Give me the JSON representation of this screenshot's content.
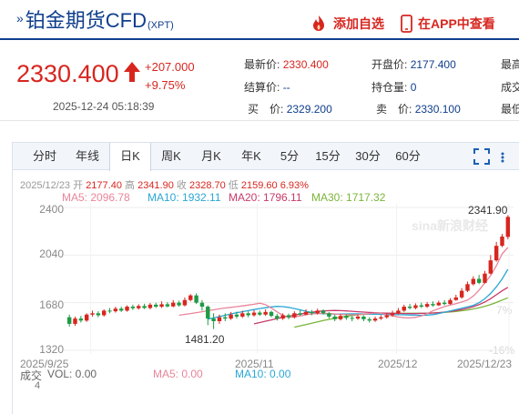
{
  "header": {
    "title": "铂金期货CFD",
    "code": "(XPT)",
    "add_watchlist": "添加自选",
    "open_app": "在APP中查看",
    "accent": "#0f3e8c",
    "alert": "#d7261f"
  },
  "quote": {
    "price": "2330.400",
    "change": "+207.000",
    "change_pct": "+9.75%",
    "time": "2025-12-24 05:18:39",
    "fields": [
      {
        "label": "最新价:",
        "value": "2330.400"
      },
      {
        "label": "开盘价:",
        "value": "2177.400"
      },
      {
        "label": "最高"
      },
      {
        "label": "结算价:",
        "value": "--"
      },
      {
        "label": "持仓量:",
        "value": "0"
      },
      {
        "label": "成交"
      },
      {
        "label": "买　价:",
        "value": "2329.200"
      },
      {
        "label": "卖　价:",
        "value": "2330.100"
      },
      {
        "label": "最低"
      }
    ]
  },
  "tabs": [
    "分时",
    "年线",
    "日K",
    "周K",
    "月K",
    "年K",
    "5分",
    "15分",
    "30分",
    "60分"
  ],
  "active_tab": "日K",
  "chart_info": {
    "date": "2025/12/23",
    "open_label": "开",
    "open": "2177.40",
    "high_label": "高",
    "high": "2341.90",
    "close_label": "收",
    "close": "2328.70",
    "low_label": "低",
    "low": "2159.60",
    "change_pct": "6.93%"
  },
  "ma_legend": [
    {
      "text": "MA5: 2096.78",
      "color": "#e8859a"
    },
    {
      "text": "MA10: 1932.11",
      "color": "#2aa7d4"
    },
    {
      "text": "MA20: 1796.11",
      "color": "#c93a6a"
    },
    {
      "text": "MA30: 1717.32",
      "color": "#7bb43a"
    }
  ],
  "y_labels": [
    "2400",
    "2040",
    "1680",
    "1320"
  ],
  "pct_labels": [
    "7%",
    "-16%"
  ],
  "x_labels": [
    "2025/9/25",
    "2025/11",
    "2025/12",
    "2025/12/23"
  ],
  "annotations": {
    "high": "2341.90",
    "low": "1481.20"
  },
  "watermark": "sina新浪财经",
  "volume": {
    "label": "成交",
    "unit": "4",
    "vol": "VOL: 0.00",
    "ma5": "MA5: 0.00",
    "ma10": "MA10: 0.00"
  },
  "chart_data": {
    "type": "candlestick",
    "x_range": [
      "2025/9/17",
      "2025/12/23"
    ],
    "ylim": [
      1320,
      2400
    ],
    "up_color": "#d7261f",
    "down_color": "#1e9b44",
    "candles": [
      [
        1570,
        1520,
        1590,
        1500
      ],
      [
        1520,
        1560,
        1575,
        1505
      ],
      [
        1560,
        1545,
        1580,
        1530
      ],
      [
        1545,
        1590,
        1600,
        1535
      ],
      [
        1590,
        1600,
        1620,
        1575
      ],
      [
        1600,
        1585,
        1615,
        1570
      ],
      [
        1585,
        1620,
        1630,
        1575
      ],
      [
        1620,
        1615,
        1640,
        1600
      ],
      [
        1615,
        1635,
        1650,
        1605
      ],
      [
        1635,
        1620,
        1650,
        1610
      ],
      [
        1620,
        1650,
        1660,
        1612
      ],
      [
        1650,
        1638,
        1665,
        1625
      ],
      [
        1638,
        1655,
        1668,
        1628
      ],
      [
        1655,
        1640,
        1672,
        1632
      ],
      [
        1640,
        1665,
        1678,
        1630
      ],
      [
        1665,
        1650,
        1680,
        1640
      ],
      [
        1650,
        1668,
        1690,
        1640
      ],
      [
        1668,
        1652,
        1684,
        1645
      ],
      [
        1652,
        1680,
        1700,
        1645
      ],
      [
        1680,
        1660,
        1695,
        1650
      ],
      [
        1660,
        1700,
        1720,
        1652
      ],
      [
        1700,
        1735,
        1745,
        1690
      ],
      [
        1735,
        1680,
        1750,
        1670
      ],
      [
        1680,
        1650,
        1700,
        1620
      ],
      [
        1650,
        1560,
        1660,
        1510
      ],
      [
        1560,
        1540,
        1600,
        1481
      ],
      [
        1540,
        1570,
        1590,
        1520
      ],
      [
        1570,
        1560,
        1600,
        1540
      ],
      [
        1560,
        1590,
        1610,
        1550
      ],
      [
        1590,
        1575,
        1612,
        1560
      ],
      [
        1575,
        1600,
        1620,
        1565
      ],
      [
        1600,
        1585,
        1615,
        1570
      ],
      [
        1585,
        1605,
        1625,
        1575
      ],
      [
        1605,
        1590,
        1620,
        1580
      ],
      [
        1590,
        1610,
        1630,
        1580
      ],
      [
        1610,
        1580,
        1620,
        1570
      ],
      [
        1580,
        1560,
        1595,
        1545
      ],
      [
        1560,
        1585,
        1600,
        1550
      ],
      [
        1585,
        1570,
        1598,
        1555
      ],
      [
        1570,
        1600,
        1615,
        1560
      ],
      [
        1600,
        1590,
        1625,
        1580
      ],
      [
        1590,
        1610,
        1630,
        1585
      ],
      [
        1610,
        1600,
        1625,
        1585
      ],
      [
        1600,
        1620,
        1635,
        1590
      ],
      [
        1620,
        1600,
        1630,
        1590
      ],
      [
        1600,
        1575,
        1610,
        1560
      ],
      [
        1575,
        1555,
        1590,
        1540
      ],
      [
        1555,
        1580,
        1595,
        1545
      ],
      [
        1580,
        1565,
        1592,
        1550
      ],
      [
        1565,
        1560,
        1580,
        1540
      ],
      [
        1560,
        1575,
        1590,
        1550
      ],
      [
        1575,
        1555,
        1585,
        1540
      ],
      [
        1555,
        1545,
        1570,
        1530
      ],
      [
        1545,
        1560,
        1575,
        1535
      ],
      [
        1560,
        1570,
        1585,
        1550
      ],
      [
        1570,
        1585,
        1600,
        1560
      ],
      [
        1585,
        1600,
        1620,
        1575
      ],
      [
        1600,
        1620,
        1640,
        1590
      ],
      [
        1620,
        1650,
        1665,
        1610
      ],
      [
        1650,
        1640,
        1670,
        1630
      ],
      [
        1640,
        1660,
        1675,
        1630
      ],
      [
        1660,
        1650,
        1680,
        1640
      ],
      [
        1650,
        1670,
        1685,
        1640
      ],
      [
        1670,
        1660,
        1690,
        1650
      ],
      [
        1660,
        1680,
        1695,
        1655
      ],
      [
        1680,
        1670,
        1700,
        1660
      ],
      [
        1670,
        1700,
        1715,
        1665
      ],
      [
        1700,
        1720,
        1740,
        1695
      ],
      [
        1720,
        1770,
        1790,
        1710
      ],
      [
        1770,
        1820,
        1840,
        1760
      ],
      [
        1820,
        1860,
        1880,
        1810
      ],
      [
        1860,
        1830,
        1890,
        1820
      ],
      [
        1830,
        1900,
        1920,
        1825
      ],
      [
        1900,
        2000,
        2040,
        1895
      ],
      [
        2000,
        2110,
        2140,
        1990
      ],
      [
        2110,
        2180,
        2200,
        2100
      ],
      [
        2177.4,
        2328.7,
        2341.9,
        2159.6
      ]
    ],
    "ma5": [
      1585,
      1592,
      1598,
      1605,
      1612,
      1620,
      1626,
      1634,
      1640,
      1645,
      1650,
      1656,
      1662,
      1668,
      1676,
      1665,
      1640,
      1610,
      1585,
      1570,
      1572,
      1580,
      1588,
      1595,
      1598,
      1600,
      1598,
      1595,
      1592,
      1590,
      1588,
      1590,
      1594,
      1598,
      1602,
      1600,
      1590,
      1580,
      1572,
      1566,
      1565,
      1570,
      1580,
      1598,
      1618,
      1635,
      1650,
      1662,
      1672,
      1685,
      1700,
      1730,
      1775,
      1830,
      1885,
      1960,
      2050,
      2097
    ],
    "ma10": [
      1555,
      1565,
      1575,
      1585,
      1595,
      1604,
      1612,
      1620,
      1628,
      1636,
      1642,
      1648,
      1652,
      1650,
      1645,
      1636,
      1626,
      1615,
      1606,
      1600,
      1597,
      1595,
      1594,
      1594,
      1595,
      1596,
      1596,
      1595,
      1594,
      1593,
      1592,
      1591,
      1590,
      1589,
      1588,
      1587,
      1586,
      1585,
      1586,
      1590,
      1598,
      1608,
      1618,
      1628,
      1638,
      1648,
      1660,
      1680,
      1710,
      1750,
      1800,
      1860,
      1932
    ],
    "ma20": [
      1520,
      1530,
      1540,
      1550,
      1560,
      1570,
      1578,
      1586,
      1594,
      1602,
      1608,
      1614,
      1618,
      1620,
      1621,
      1620,
      1618,
      1615,
      1612,
      1609,
      1606,
      1604,
      1602,
      1601,
      1600,
      1599,
      1598,
      1598,
      1598,
      1599,
      1600,
      1602,
      1605,
      1609,
      1614,
      1620,
      1628,
      1638,
      1650,
      1665,
      1685,
      1710,
      1740,
      1770,
      1796
    ],
    "ma30": [
      1495,
      1505,
      1515,
      1525,
      1535,
      1545,
      1554,
      1562,
      1570,
      1577,
      1583,
      1588,
      1592,
      1595,
      1597,
      1598,
      1599,
      1600,
      1600,
      1600,
      1600,
      1600,
      1600,
      1601,
      1602,
      1604,
      1607,
      1610,
      1614,
      1619,
      1625,
      1633,
      1642,
      1653,
      1666,
      1682,
      1700,
      1717
    ]
  }
}
